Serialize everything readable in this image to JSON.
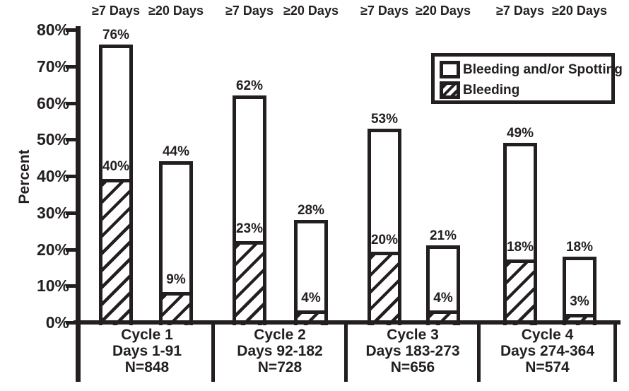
{
  "chart_data": {
    "type": "bar",
    "title": "",
    "xlabel": "",
    "ylabel": "Percent",
    "ylim": [
      0,
      80
    ],
    "ytick_labels": [
      "0%",
      "10%",
      "20%",
      "30%",
      "40%",
      "50%",
      "60%",
      "70%",
      "80%"
    ],
    "grid": false,
    "legend_position": "upper-right",
    "legend": [
      {
        "label": "Bleeding and/or Spotting",
        "swatch": "blank"
      },
      {
        "label": "Bleeding",
        "swatch": "hatched"
      }
    ],
    "groups": [
      {
        "cycle": "Cycle 1",
        "days": "Days 1-91",
        "n": "N=848",
        "bars": [
          {
            "duration": "≥7 Days",
            "bleeding_and_or_spotting_pct": 76,
            "bleeding_pct": 40,
            "total_label": "76%",
            "segment_label": "40%"
          },
          {
            "duration": "≥20 Days",
            "bleeding_and_or_spotting_pct": 44,
            "bleeding_pct": 9,
            "total_label": "44%",
            "segment_label": "9%"
          }
        ]
      },
      {
        "cycle": "Cycle 2",
        "days": "Days 92-182",
        "n": "N=728",
        "bars": [
          {
            "duration": "≥7 Days",
            "bleeding_and_or_spotting_pct": 62,
            "bleeding_pct": 23,
            "total_label": "62%",
            "segment_label": "23%"
          },
          {
            "duration": "≥20 Days",
            "bleeding_and_or_spotting_pct": 28,
            "bleeding_pct": 4,
            "total_label": "28%",
            "segment_label": "4%"
          }
        ]
      },
      {
        "cycle": "Cycle 3",
        "days": "Days 183-273",
        "n": "N=656",
        "bars": [
          {
            "duration": "≥7 Days",
            "bleeding_and_or_spotting_pct": 53,
            "bleeding_pct": 20,
            "total_label": "53%",
            "segment_label": "20%"
          },
          {
            "duration": "≥20 Days",
            "bleeding_and_or_spotting_pct": 21,
            "bleeding_pct": 4,
            "total_label": "21%",
            "segment_label": "4%"
          }
        ]
      },
      {
        "cycle": "Cycle 4",
        "days": "Days 274-364",
        "n": "N=574",
        "bars": [
          {
            "duration": "≥7 Days",
            "bleeding_and_or_spotting_pct": 49,
            "bleeding_pct": 18,
            "total_label": "49%",
            "segment_label": "18%"
          },
          {
            "duration": "≥20 Days",
            "bleeding_and_or_spotting_pct": 18,
            "bleeding_pct": 3,
            "total_label": "18%",
            "segment_label": "3%"
          }
        ]
      }
    ],
    "ink_color": "#231F20",
    "background_color": "#FFFFFF"
  }
}
